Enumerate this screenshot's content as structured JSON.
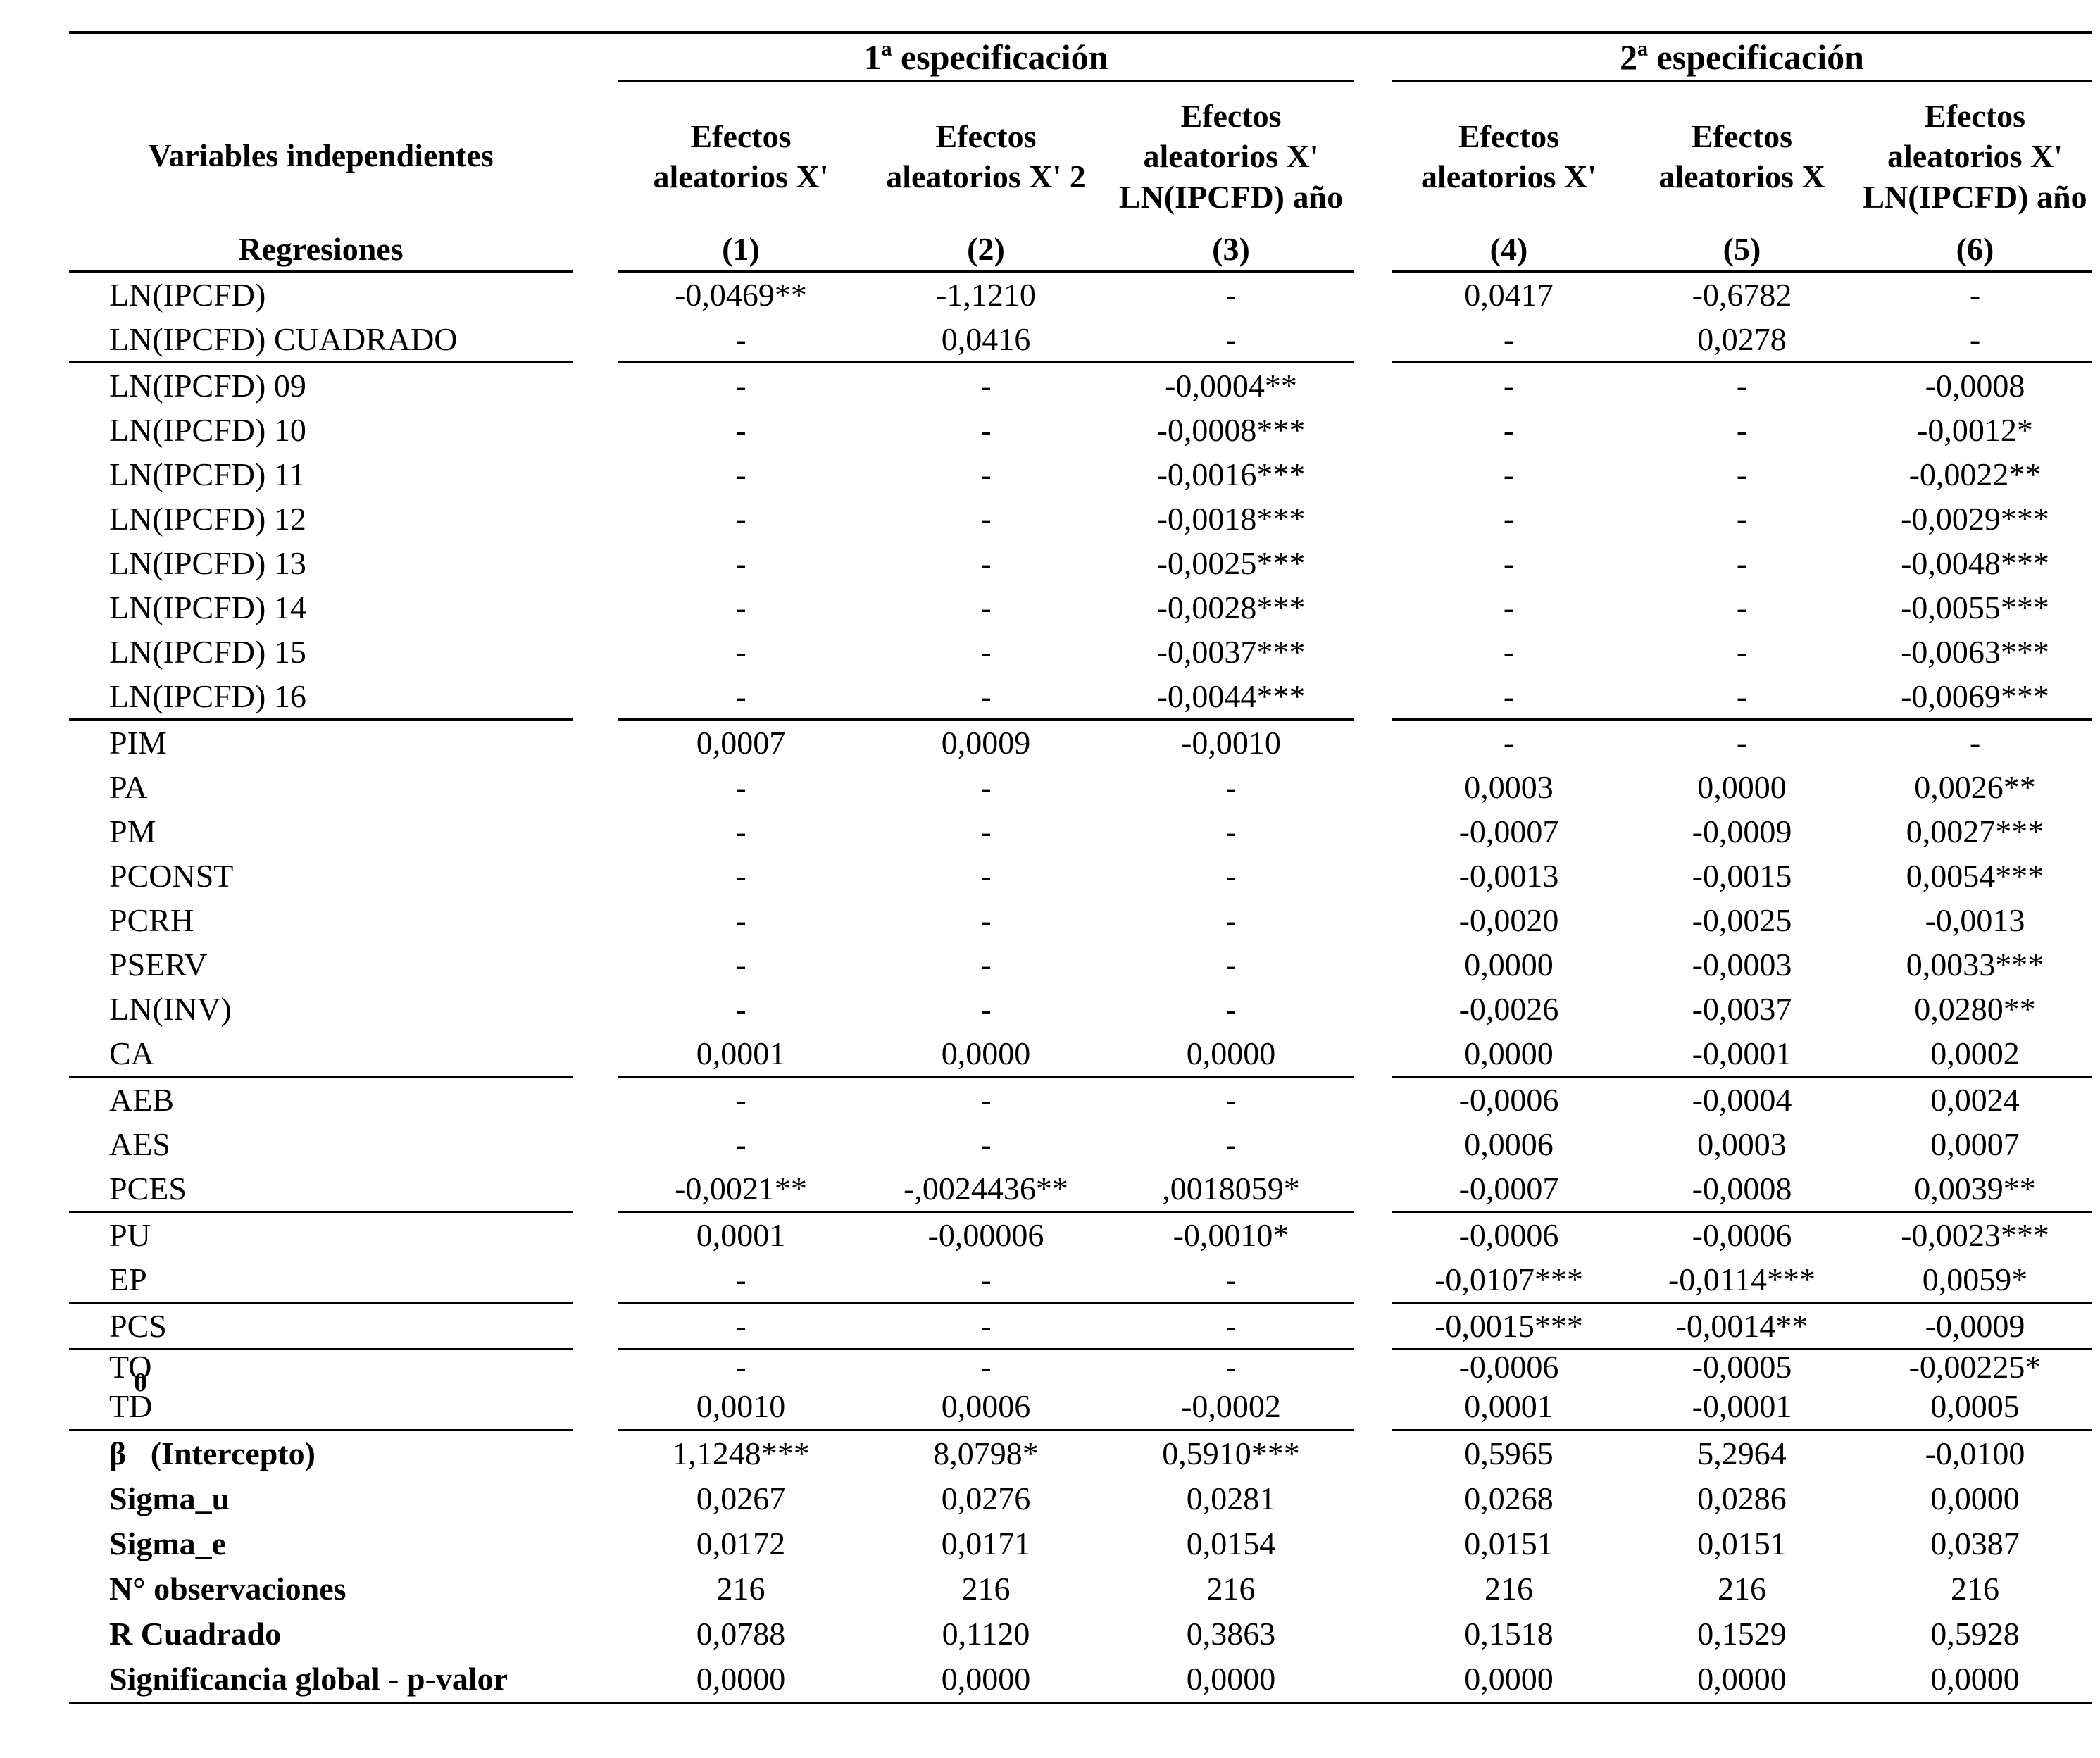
{
  "colors": {
    "text": "#000000",
    "background": "#ffffff"
  },
  "table": {
    "corner": {
      "top_label": "Variables independientes",
      "bottom_label": "Regresiones"
    },
    "spec_groups": [
      {
        "title": "1ª especificación",
        "columns": [
          {
            "header": "Efectos aleatorios X'",
            "number": "(1)"
          },
          {
            "header": "Efectos aleatorios X' 2",
            "number": "(2)"
          },
          {
            "header": "Efectos aleatorios X' LN(IPCFD) año",
            "number": "(3)"
          }
        ]
      },
      {
        "title": "2ª especificación",
        "columns": [
          {
            "header": "Efectos aleatorios X'",
            "number": "(4)"
          },
          {
            "header": "Efectos aleatorios X",
            "number": "(5)"
          },
          {
            "header": "Efectos aleatorios X' LN(IPCFD) año",
            "number": "(6)"
          }
        ]
      }
    ],
    "rows": [
      {
        "label": "LN(IPCFD)",
        "values": [
          "-0,0469**",
          "-1,1210",
          "-",
          "0,0417",
          "-0,6782",
          "-"
        ]
      },
      {
        "label": "LN(IPCFD) CUADRADO",
        "values": [
          "-",
          "0,0416",
          "-",
          "-",
          "0,0278",
          "-"
        ],
        "rule_after": true
      },
      {
        "label": "LN(IPCFD) 09",
        "values": [
          "-",
          "-",
          "-0,0004**",
          "-",
          "-",
          "-0,0008"
        ]
      },
      {
        "label": "LN(IPCFD) 10",
        "values": [
          "-",
          "-",
          "-0,0008***",
          "-",
          "-",
          "-0,0012*"
        ]
      },
      {
        "label": "LN(IPCFD) 11",
        "values": [
          "-",
          "-",
          "-0,0016***",
          "-",
          "-",
          "-0,0022**"
        ]
      },
      {
        "label": "LN(IPCFD) 12",
        "values": [
          "-",
          "-",
          "-0,0018***",
          "-",
          "-",
          "-0,0029***"
        ]
      },
      {
        "label": "LN(IPCFD) 13",
        "values": [
          "-",
          "-",
          "-0,0025***",
          "-",
          "-",
          "-0,0048***"
        ]
      },
      {
        "label": "LN(IPCFD) 14",
        "values": [
          "-",
          "-",
          "-0,0028***",
          "-",
          "-",
          "-0,0055***"
        ]
      },
      {
        "label": "LN(IPCFD) 15",
        "values": [
          "-",
          "-",
          "-0,0037***",
          "-",
          "-",
          "-0,0063***"
        ]
      },
      {
        "label": "LN(IPCFD) 16",
        "values": [
          "-",
          "-",
          "-0,0044***",
          "-",
          "-",
          "-0,0069***"
        ],
        "rule_after": true
      },
      {
        "label": "PIM",
        "values": [
          "0,0007",
          "0,0009",
          "-0,0010",
          "-",
          "-",
          "-"
        ]
      },
      {
        "label": "PA",
        "values": [
          "-",
          "-",
          "-",
          "0,0003",
          "0,0000",
          "0,0026**"
        ]
      },
      {
        "label": "PM",
        "values": [
          "-",
          "-",
          "-",
          "-0,0007",
          "-0,0009",
          "0,0027***"
        ]
      },
      {
        "label": "PCONST",
        "values": [
          "-",
          "-",
          "-",
          "-0,0013",
          "-0,0015",
          "0,0054***"
        ]
      },
      {
        "label": "PCRH",
        "values": [
          "-",
          "-",
          "-",
          "-0,0020",
          "-0,0025",
          "-0,0013"
        ]
      },
      {
        "label": "PSERV",
        "values": [
          "-",
          "-",
          "-",
          "0,0000",
          "-0,0003",
          "0,0033***"
        ]
      },
      {
        "label": "LN(INV)",
        "values": [
          "-",
          "-",
          "-",
          "-0,0026",
          "-0,0037",
          "0,0280**"
        ]
      },
      {
        "label": "CA",
        "values": [
          "0,0001",
          "0,0000",
          "0,0000",
          "0,0000",
          "-0,0001",
          "0,0002"
        ],
        "rule_after": true
      },
      {
        "label": "AEB",
        "values": [
          "-",
          "-",
          "-",
          "-0,0006",
          "-0,0004",
          "0,0024"
        ]
      },
      {
        "label": "AES",
        "values": [
          "-",
          "-",
          "-",
          "0,0006",
          "0,0003",
          "0,0007"
        ]
      },
      {
        "label": "PCES",
        "values": [
          "-0,0021**",
          "-,0024436**",
          ",0018059*",
          "-0,0007",
          "-0,0008",
          "0,0039**"
        ],
        "rule_after": true
      },
      {
        "label": "PU",
        "values": [
          "0,0001",
          "-0,00006",
          "-0,0010*",
          "-0,0006",
          "-0,0006",
          "-0,0023***"
        ]
      },
      {
        "label": "EP",
        "values": [
          "-",
          "-",
          "-",
          "-0,0107***",
          "-0,0114***",
          "0,0059*"
        ],
        "rule_after": true
      },
      {
        "label": "PCS",
        "values": [
          "-",
          "-",
          "-",
          "-0,0015***",
          "-0,0014**",
          "-0,0009"
        ],
        "rule_after": true
      },
      {
        "label": "TO",
        "compact": true,
        "values": [
          "-",
          "-",
          "-",
          "-0,0006",
          "-0,0005",
          "-0,00225*"
        ]
      },
      {
        "label": "TD",
        "label_above": "0",
        "tall": true,
        "values": [
          "0,0010",
          "0,0006",
          "-0,0002",
          "0,0001",
          "-0,0001",
          "0,0005"
        ],
        "rule_after": true
      },
      {
        "label": "β   (Intercepto)",
        "bold": true,
        "tall": true,
        "values": [
          "1,1248***",
          "8,0798*",
          "0,5910***",
          "0,5965",
          "5,2964",
          "-0,0100"
        ]
      },
      {
        "label": "Sigma_u",
        "bold": true,
        "tall": true,
        "values": [
          "0,0267",
          "0,0276",
          "0,0281",
          "0,0268",
          "0,0286",
          "0,0000"
        ]
      },
      {
        "label": "Sigma_e",
        "bold": true,
        "tall": true,
        "values": [
          "0,0172",
          "0,0171",
          "0,0154",
          "0,0151",
          "0,0151",
          "0,0387"
        ]
      },
      {
        "label": "N° observaciones",
        "bold": true,
        "tall": true,
        "values": [
          "216",
          "216",
          "216",
          "216",
          "216",
          "216"
        ]
      },
      {
        "label": "R Cuadrado",
        "bold": true,
        "tall": true,
        "values": [
          "0,0788",
          "0,1120",
          "0,3863",
          "0,1518",
          "0,1529",
          "0,5928"
        ]
      },
      {
        "label": "Significancia global - p-valor",
        "bold": true,
        "tall": true,
        "values": [
          "0,0000",
          "0,0000",
          "0,0000",
          "0,0000",
          "0,0000",
          "0,0000"
        ]
      }
    ]
  }
}
